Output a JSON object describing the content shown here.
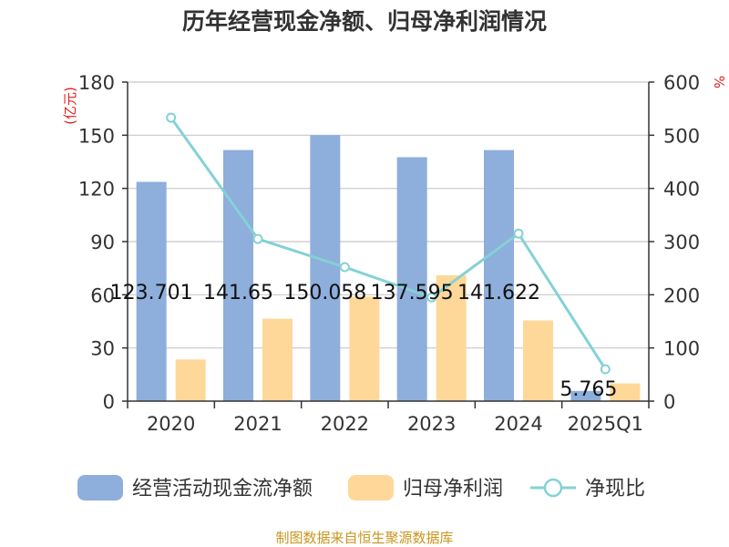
{
  "chart_data": {
    "type": "bar",
    "title": "历年经营现金净额、归母净利润情况",
    "categories": [
      "2020",
      "2021",
      "2022",
      "2023",
      "2024",
      "2025Q1"
    ],
    "series": [
      {
        "name": "经营活动现金流净额",
        "type": "bar",
        "axis": "left",
        "color": "#8eaedb",
        "values": [
          123.701,
          141.65,
          150.058,
          137.595,
          141.622,
          5.765
        ],
        "labels": [
          "123.701",
          "141.65",
          "150.058",
          "137.595",
          "141.622",
          "5.765"
        ]
      },
      {
        "name": "归母净利润",
        "type": "bar",
        "axis": "left",
        "color": "#fed899",
        "values": [
          23.5,
          46.5,
          59,
          71,
          45.5,
          10
        ]
      },
      {
        "name": "净现比",
        "type": "line",
        "axis": "right",
        "color": "#84d1d6",
        "values": [
          533,
          305,
          252,
          195,
          315,
          60
        ]
      }
    ],
    "y_left": {
      "label": "(亿元)",
      "ylim": [
        0,
        180
      ],
      "ticks": [
        0,
        30,
        60,
        90,
        120,
        150,
        180
      ]
    },
    "y_right": {
      "label": "%",
      "ylim": [
        0,
        600
      ],
      "ticks": [
        0,
        100,
        200,
        300,
        400,
        500,
        600
      ]
    },
    "grid": true,
    "legend": "bottom",
    "source": "制图数据来自恒生聚源数据库"
  }
}
